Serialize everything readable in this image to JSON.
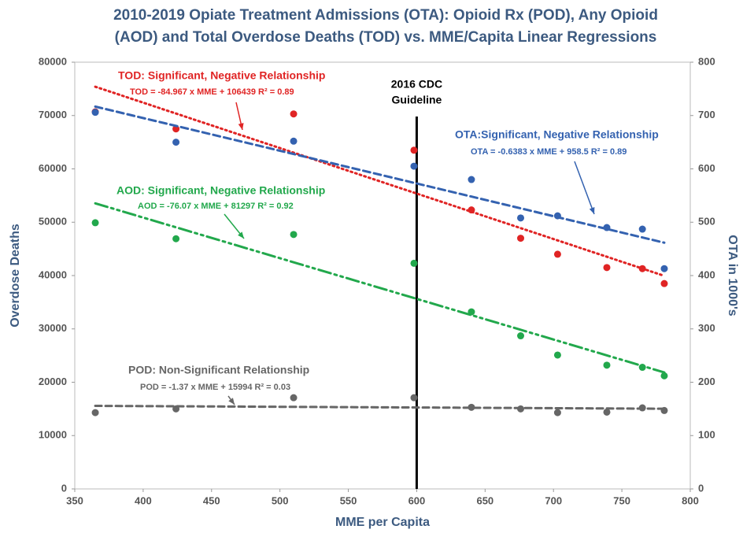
{
  "chart_data": {
    "type": "scatter",
    "title": [
      "2010-2019 Opiate Treatment Admissions (OTA): Opioid Rx (POD), Any Opioid",
      "(AOD) and Total Overdose Deaths (TOD) vs. MME/Capita Linear Regressions"
    ],
    "x_label": "MME per Capita",
    "y_label": "Overdose Deaths",
    "y2_label": "OTA in 1000's",
    "x": [
      365,
      424,
      510,
      598,
      640,
      676,
      703,
      739,
      765,
      781
    ],
    "series": [
      {
        "name": "TOD",
        "color": "#e02424",
        "dash": "2,4",
        "values": [
          70700,
          67500,
          70300,
          63500,
          52300,
          47000,
          44000,
          41500,
          41300,
          38500
        ]
      },
      {
        "name": "OTA",
        "color": "#3462b0",
        "dash": "9,5",
        "axis": "y2",
        "values": [
          706,
          650,
          652,
          605,
          580,
          508,
          512,
          490,
          487,
          413
        ]
      },
      {
        "name": "AOD",
        "color": "#22a84c",
        "dash": "16,5,3,5,3,5",
        "values": [
          49900,
          46900,
          47700,
          42300,
          33200,
          28700,
          25100,
          23200,
          22800,
          21200
        ]
      },
      {
        "name": "POD",
        "color": "#666666",
        "dash": "8,5",
        "values": [
          14300,
          15000,
          17100,
          17100,
          15300,
          15000,
          14300,
          14400,
          15200,
          14700
        ]
      }
    ],
    "annotations": [
      {
        "title": "TOD: Significant, Negative Relationship",
        "equation": "TOD = -84.967 x MME + 106439   R² = 0.89"
      },
      {
        "title": "OTA:Significant, Negative Relationship",
        "equation": "OTA = -0.6383 x MME + 958.5   R² = 0.89"
      },
      {
        "title": "AOD:  Significant, Negative Relationship",
        "equation": "AOD = -76.07 x MME + 81297   R² = 0.92"
      },
      {
        "title": "POD: Non-Significant Relationship",
        "equation": "POD = -1.37 x MME + 15994   R² = 0.03"
      }
    ],
    "vline": {
      "x": 600,
      "label": [
        "2016 CDC",
        "Guideline"
      ]
    },
    "xlim": [
      350,
      800
    ],
    "xticks": [
      350,
      400,
      450,
      500,
      550,
      600,
      650,
      700,
      750,
      800
    ],
    "ylim": [
      0,
      80000
    ],
    "yticks": [
      0,
      10000,
      20000,
      30000,
      40000,
      50000,
      60000,
      70000,
      80000
    ],
    "y2lim": [
      0,
      800
    ],
    "y2ticks": [
      0,
      100,
      200,
      300,
      400,
      500,
      600,
      700,
      800
    ],
    "grid": false
  }
}
